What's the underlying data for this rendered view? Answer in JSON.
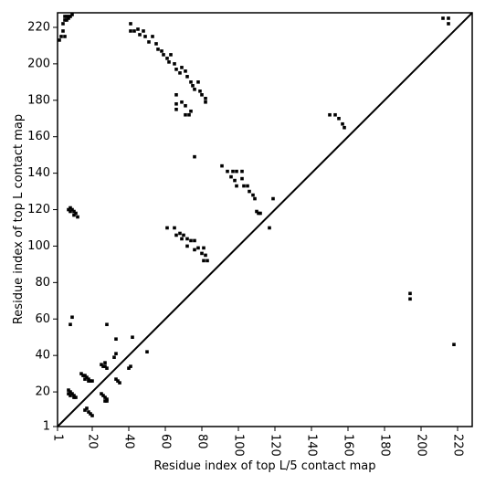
{
  "chart_data": {
    "type": "scatter",
    "xlabel": "Residue index of top L/5 contact map",
    "ylabel": "Residue index of top L contact map",
    "xlim": [
      1,
      228
    ],
    "ylim": [
      1,
      228
    ],
    "xticks": [
      1,
      20,
      40,
      60,
      80,
      100,
      120,
      140,
      160,
      180,
      200,
      220
    ],
    "yticks": [
      1,
      20,
      40,
      60,
      80,
      100,
      120,
      140,
      160,
      180,
      200,
      220
    ],
    "color": "#000000",
    "diagonal": true,
    "x": [
      5,
      6,
      7,
      8,
      9,
      5,
      6,
      7,
      4,
      4,
      3,
      2,
      5,
      41,
      41,
      43,
      45,
      46,
      48,
      49,
      51,
      53,
      55,
      56,
      58,
      59,
      61,
      62,
      63,
      65,
      66,
      68,
      69,
      71,
      72,
      74,
      75,
      76,
      78,
      79,
      80,
      82,
      82,
      66,
      66,
      66,
      69,
      71,
      71,
      74,
      73,
      76,
      212,
      215,
      215,
      91,
      94,
      96,
      97,
      99,
      98,
      99,
      102,
      102,
      103,
      105,
      106,
      108,
      109,
      110,
      111,
      112,
      117,
      119,
      150,
      153,
      155,
      157,
      158,
      61,
      65,
      66,
      68,
      69,
      70,
      72,
      72,
      74,
      76,
      76,
      78,
      80,
      81,
      81,
      82,
      83,
      7,
      8,
      8,
      9,
      10,
      10,
      11,
      12,
      194,
      194,
      218,
      9,
      8,
      7,
      7,
      8,
      8,
      9,
      10,
      10,
      11,
      14,
      15,
      16,
      16,
      17,
      18,
      18,
      19,
      20,
      16,
      17,
      18,
      19,
      20,
      25,
      26,
      27,
      28,
      27,
      25,
      26,
      27,
      28,
      27,
      28,
      33,
      34,
      35,
      32,
      33,
      33,
      40,
      41,
      42,
      50,
      28
    ],
    "y": [
      226,
      226,
      226,
      226,
      227,
      224,
      224,
      225,
      222,
      218,
      215,
      213,
      215,
      222,
      218,
      218,
      219,
      216,
      218,
      215,
      212,
      215,
      211,
      208,
      207,
      205,
      203,
      201,
      205,
      200,
      197,
      195,
      198,
      196,
      193,
      190,
      188,
      186,
      190,
      185,
      183,
      181,
      179,
      183,
      178,
      175,
      179,
      177,
      172,
      174,
      172,
      149,
      225,
      225,
      222,
      144,
      141,
      138,
      141,
      141,
      136,
      133,
      141,
      137,
      133,
      133,
      130,
      128,
      126,
      119,
      118,
      118,
      110,
      126,
      172,
      172,
      170,
      167,
      165,
      110,
      110,
      106,
      107,
      104,
      106,
      104,
      100,
      103,
      103,
      98,
      99,
      96,
      99,
      92,
      95,
      92,
      120,
      121,
      119,
      120,
      119,
      117,
      118,
      116,
      74,
      71,
      46,
      61,
      57,
      21,
      19,
      20,
      18,
      19,
      18,
      17,
      17,
      30,
      29,
      29,
      27,
      28,
      27,
      26,
      26,
      26,
      10,
      11,
      9,
      8,
      7,
      35,
      34,
      34,
      33,
      36,
      19,
      18,
      17,
      16,
      15,
      15,
      27,
      26,
      25,
      39,
      41,
      49,
      33,
      34,
      50,
      42,
      57
    ]
  }
}
